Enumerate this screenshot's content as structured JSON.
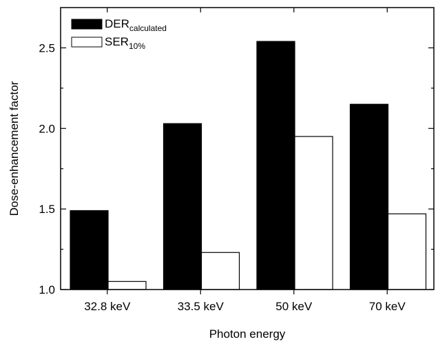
{
  "chart_data": {
    "type": "bar",
    "title": "",
    "xlabel": "Photon energy",
    "ylabel": "Dose-enhancement factor",
    "categories": [
      "32.8 keV",
      "33.5 keV",
      "50 keV",
      "70 keV"
    ],
    "ylim": [
      1.0,
      2.75
    ],
    "yticks": [
      1.0,
      1.5,
      2.0,
      2.5
    ],
    "ytick_labels": [
      "1.0",
      "1.5",
      "2.0",
      "2.5"
    ],
    "series": [
      {
        "name": "DERcalculated",
        "name_main": "DER",
        "name_sub": "calculated",
        "color": "#000000",
        "values": [
          1.49,
          2.03,
          2.54,
          2.15
        ]
      },
      {
        "name": "SER10%",
        "name_main": "SER",
        "name_sub": "10%",
        "color": "#ffffff",
        "values": [
          1.05,
          1.23,
          1.95,
          1.47
        ]
      }
    ],
    "legend_position": "top-left",
    "grid": false
  }
}
